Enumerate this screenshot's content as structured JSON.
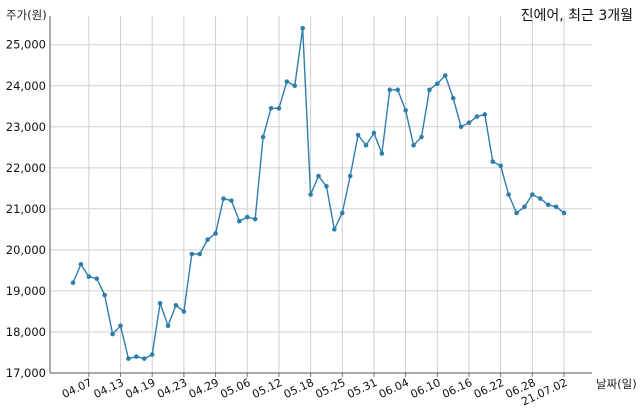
{
  "chart_data": {
    "type": "line",
    "title": "진에어, 최근 3개월",
    "xlabel": "날짜(일)",
    "ylabel": "주가(원)",
    "ylim": [
      17000,
      25700
    ],
    "yticks": [
      17000,
      18000,
      19000,
      20000,
      21000,
      22000,
      23000,
      24000,
      25000
    ],
    "ytick_labels": [
      "17,000",
      "18,000",
      "19,000",
      "20,000",
      "21,000",
      "22,000",
      "23,000",
      "24,000",
      "25,000"
    ],
    "xtick_labels": [
      "04.07",
      "04.13",
      "04.19",
      "04.23",
      "04.29",
      "05.06",
      "05.12",
      "05.18",
      "05.25",
      "05.31",
      "06.04",
      "06.10",
      "06.16",
      "06.22",
      "06.28",
      "21.07.02"
    ],
    "xtick_index": [
      2,
      6,
      10,
      14,
      18,
      22,
      26,
      30,
      34,
      38,
      42,
      46,
      50,
      54,
      58,
      62
    ],
    "grid": true,
    "line_color": "#2e7eab",
    "series": [
      {
        "values": [
          19200,
          19650,
          19350,
          19300,
          18900,
          17950,
          18150,
          17350,
          17400,
          17350,
          17450,
          18700,
          18150,
          18650,
          18500,
          19900,
          19900,
          20250,
          20400,
          21250,
          21200,
          20700,
          20800,
          20750,
          22750,
          23450,
          23450,
          24100,
          24000,
          25400,
          21350,
          21800,
          21550,
          20500,
          20900,
          21800,
          22800,
          22550,
          22850,
          22350,
          23900,
          23900,
          23400,
          22550,
          22750,
          23900,
          24050,
          24250,
          23700,
          23000,
          23100,
          23250,
          23300,
          22150,
          22050,
          21350,
          20900,
          21050,
          21350,
          21250,
          21100,
          21050,
          20900
        ]
      }
    ]
  }
}
